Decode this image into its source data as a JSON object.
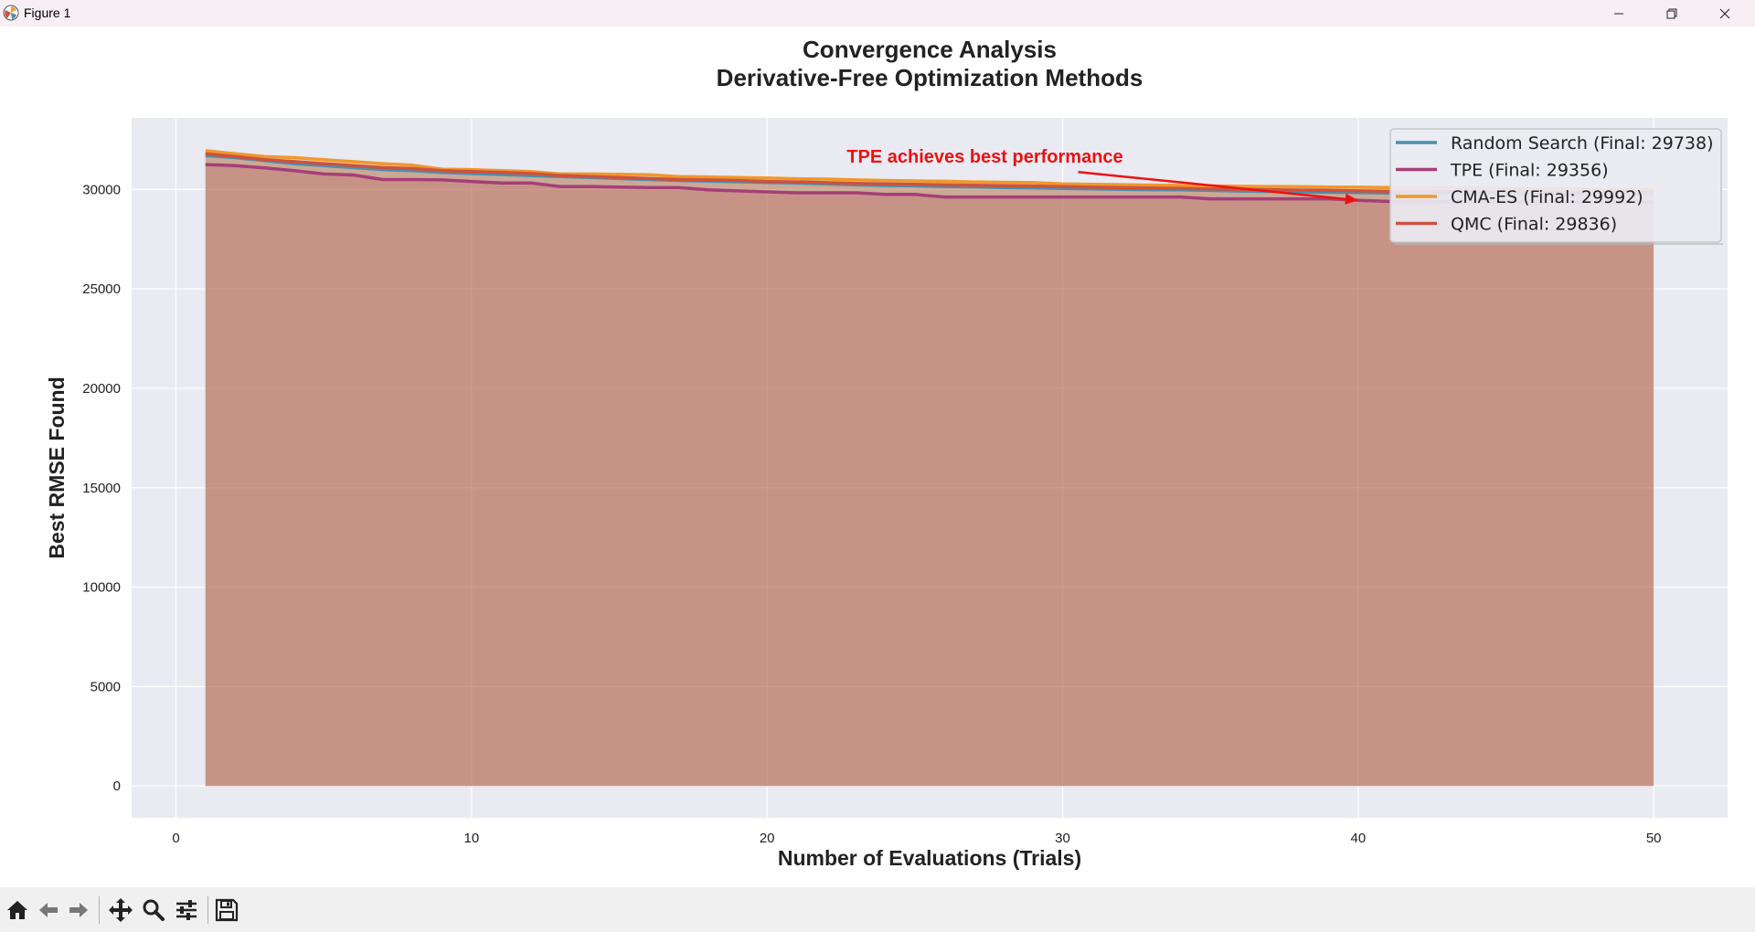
{
  "window": {
    "title": "Figure 1"
  },
  "toolbar": {
    "buttons": [
      "home-icon",
      "back-arrow-icon",
      "forward-arrow-icon",
      "pan-icon",
      "zoom-icon",
      "configure-subplots-icon",
      "save-icon"
    ]
  },
  "chart_data": {
    "type": "line",
    "title": "Convergence Analysis",
    "subtitle": "Derivative-Free Optimization Methods",
    "xlabel": "Number of Evaluations (Trials)",
    "ylabel": "Best RMSE Found",
    "xlim": [
      -1.5,
      52.5
    ],
    "ylim": [
      -1600,
      33600
    ],
    "xticks": [
      0,
      10,
      20,
      30,
      40,
      50
    ],
    "yticks": [
      0,
      5000,
      10000,
      15000,
      20000,
      25000,
      30000
    ],
    "grid": true,
    "legend_position": "top-right",
    "fill_under": true,
    "annotation": {
      "text": "TPE achieves best performance",
      "text_at": [
        30,
        31200
      ],
      "arrow_to": [
        40,
        29450
      ],
      "color": "#ee1111"
    },
    "series": [
      {
        "name": "Random Search (Final: 29738)",
        "color": "#4a8fad",
        "fill": "#4a8fad",
        "x": [
          1,
          2,
          3,
          4,
          5,
          6,
          7,
          8,
          9,
          10,
          11,
          12,
          13,
          14,
          15,
          16,
          17,
          18,
          19,
          20,
          21,
          22,
          23,
          24,
          25,
          26,
          27,
          28,
          29,
          30,
          31,
          32,
          33,
          34,
          35,
          36,
          37,
          38,
          39,
          40,
          41,
          42,
          43,
          44,
          45,
          46,
          47,
          48,
          49,
          50
        ],
        "y": [
          31700,
          31600,
          31450,
          31300,
          31200,
          31100,
          31000,
          30950,
          30850,
          30800,
          30750,
          30700,
          30650,
          30600,
          30550,
          30500,
          30450,
          30420,
          30390,
          30350,
          30320,
          30280,
          30230,
          30200,
          30180,
          30150,
          30130,
          30100,
          30080,
          30050,
          30030,
          30000,
          29990,
          29980,
          29950,
          29920,
          29900,
          29880,
          29860,
          29840,
          29820,
          29800,
          29790,
          29780,
          29770,
          29760,
          29750,
          29745,
          29740,
          29738
        ]
      },
      {
        "name": "TPE (Final: 29356)",
        "color": "#a53f77",
        "fill": "#a53f77",
        "x": [
          1,
          2,
          3,
          4,
          5,
          6,
          7,
          8,
          9,
          10,
          11,
          12,
          13,
          14,
          15,
          16,
          17,
          18,
          19,
          20,
          21,
          22,
          23,
          24,
          25,
          26,
          27,
          28,
          29,
          30,
          31,
          32,
          33,
          34,
          35,
          36,
          37,
          38,
          39,
          40,
          41,
          42,
          43,
          44,
          45,
          46,
          47,
          48,
          49,
          50
        ],
        "y": [
          31250,
          31200,
          31080,
          30950,
          30780,
          30730,
          30500,
          30500,
          30480,
          30400,
          30330,
          30330,
          30150,
          30150,
          30120,
          30100,
          30100,
          29980,
          29930,
          29880,
          29830,
          29830,
          29830,
          29750,
          29750,
          29620,
          29620,
          29620,
          29620,
          29620,
          29620,
          29620,
          29620,
          29620,
          29530,
          29530,
          29530,
          29530,
          29530,
          29450,
          29400,
          29400,
          29390,
          29380,
          29375,
          29370,
          29365,
          29360,
          29358,
          29356
        ]
      },
      {
        "name": "CMA-ES (Final: 29992)",
        "color": "#f0982b",
        "fill": "#f0982b",
        "x": [
          1,
          2,
          3,
          4,
          5,
          6,
          7,
          8,
          9,
          10,
          11,
          12,
          13,
          14,
          15,
          16,
          17,
          18,
          19,
          20,
          21,
          22,
          23,
          24,
          25,
          26,
          27,
          28,
          29,
          30,
          31,
          32,
          33,
          34,
          35,
          36,
          37,
          38,
          39,
          40,
          41,
          42,
          43,
          44,
          45,
          46,
          47,
          48,
          49,
          50
        ],
        "y": [
          31950,
          31800,
          31650,
          31600,
          31500,
          31400,
          31300,
          31220,
          31020,
          31000,
          30950,
          30900,
          30780,
          30780,
          30760,
          30740,
          30650,
          30630,
          30600,
          30570,
          30540,
          30520,
          30480,
          30450,
          30430,
          30410,
          30380,
          30360,
          30340,
          30280,
          30260,
          30240,
          30220,
          30200,
          30180,
          30160,
          30150,
          30140,
          30120,
          30110,
          30100,
          30090,
          30070,
          30060,
          30040,
          30030,
          30010,
          30000,
          29995,
          29992
        ]
      },
      {
        "name": "QMC (Final: 29836)",
        "color": "#cc5240",
        "fill": "#cc5240",
        "x": [
          1,
          2,
          3,
          4,
          5,
          6,
          7,
          8,
          9,
          10,
          11,
          12,
          13,
          14,
          15,
          16,
          17,
          18,
          19,
          20,
          21,
          22,
          23,
          24,
          25,
          26,
          27,
          28,
          29,
          30,
          31,
          32,
          33,
          34,
          35,
          36,
          37,
          38,
          39,
          40,
          41,
          42,
          43,
          44,
          45,
          46,
          47,
          48,
          49,
          50
        ],
        "y": [
          31800,
          31650,
          31500,
          31400,
          31300,
          31200,
          31100,
          31050,
          30950,
          30900,
          30850,
          30800,
          30700,
          30650,
          30600,
          30550,
          30500,
          30480,
          30450,
          30400,
          30380,
          30340,
          30300,
          30280,
          30260,
          30230,
          30210,
          30190,
          30170,
          30140,
          30110,
          30090,
          30070,
          30050,
          30030,
          30010,
          29990,
          29970,
          29950,
          29930,
          29910,
          29900,
          29890,
          29880,
          29870,
          29860,
          29850,
          29845,
          29840,
          29836
        ]
      }
    ]
  }
}
